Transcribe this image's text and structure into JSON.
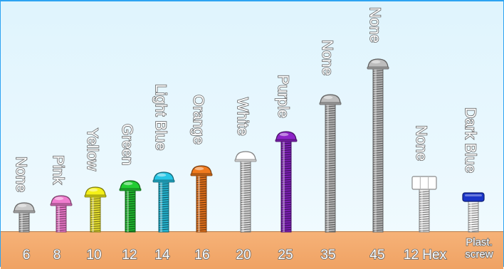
{
  "screws": [
    {
      "length": "6",
      "color_name": "None",
      "head_color": "#c9c9c9",
      "shaft": "#bcbcbc"
    },
    {
      "length": "8",
      "color_name": "Pink",
      "head_color": "#f07ccf",
      "shaft": "#e774c6"
    },
    {
      "length": "10",
      "color_name": "Yellow",
      "head_color": "#f4f018",
      "shaft": "#e3dc2e"
    },
    {
      "length": "12",
      "color_name": "Green",
      "head_color": "#22cc33",
      "shaft": "#1fb52e"
    },
    {
      "length": "14",
      "color_name": "Light Blue",
      "head_color": "#27c6e6",
      "shaft": "#25b3cf"
    },
    {
      "length": "16",
      "color_name": "Orange",
      "head_color": "#f07a1e",
      "shaft": "#de6f1b"
    },
    {
      "length": "20",
      "color_name": "White",
      "head_color": "#ffffff",
      "shaft": "#d4d4d4"
    },
    {
      "length": "25",
      "color_name": "Purple",
      "head_color": "#8d24c8",
      "shaft": "#7b1fb3"
    },
    {
      "length": "35",
      "color_name": "None",
      "head_color": "#bdbdbd",
      "shaft": "#b3b3b3"
    },
    {
      "length": "45",
      "color_name": "None",
      "head_color": "#bdbdbd",
      "shaft": "#b3b3b3"
    },
    {
      "length": "12 Hex",
      "color_name": "None",
      "head_color": "#ffffff",
      "shaft": "#e8e8e8",
      "head": "hex"
    },
    {
      "length": "Plast. screw",
      "length_lines": [
        "Plast.",
        "screw"
      ],
      "color_name": "Dark Blue",
      "head_color": "#1a35c9",
      "shaft": "#f4f4f4",
      "head": "plastic"
    }
  ]
}
